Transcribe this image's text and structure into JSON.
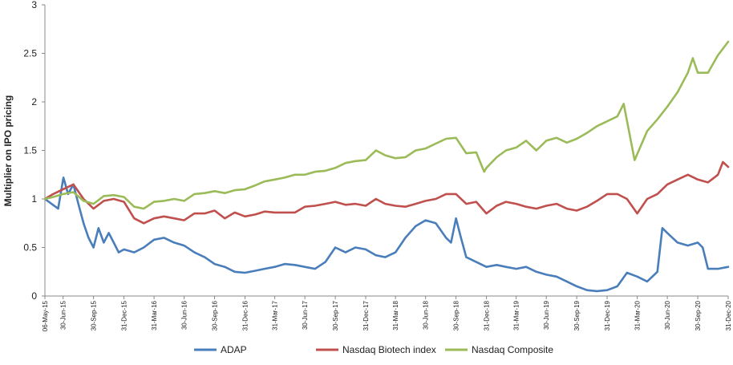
{
  "chart_data": {
    "type": "line",
    "title": "",
    "ylabel": "Multiplier on IPO pricing",
    "xlabel": "",
    "ylim": [
      0,
      3
    ],
    "yticks": [
      "0",
      "0.5",
      "1",
      "1.5",
      "2",
      "2.5",
      "3"
    ],
    "xtick_labels": [
      "06-May-15",
      "30-Jun-15",
      "30-Sep-15",
      "31-Dec-15",
      "31-Mar-16",
      "30-Jun-16",
      "30-Sep-16",
      "31-Dec-16",
      "31-Mar-17",
      "30-Jun-17",
      "30-Sep-17",
      "31-Dec-17",
      "31-Mar-18",
      "30-Jun-18",
      "30-Sep-18",
      "31-Dec-18",
      "31-Mar-19",
      "30-Jun-19",
      "30-Sep-19",
      "31-Dec-19",
      "31-Mar-20",
      "30-Jun-20",
      "30-Sep-20",
      "31-Dec-20"
    ],
    "grid": false,
    "legend_position": "bottom",
    "series": [
      {
        "name": "ADAP",
        "color": "#4a7ebb",
        "points": [
          [
            "06-May-15",
            1.0
          ],
          [
            "15-Jun-15",
            0.9
          ],
          [
            "01-Jul-15",
            1.22
          ],
          [
            "15-Jul-15",
            1.05
          ],
          [
            "31-Jul-15",
            1.15
          ],
          [
            "15-Aug-15",
            0.95
          ],
          [
            "31-Aug-15",
            0.75
          ],
          [
            "15-Sep-15",
            0.6
          ],
          [
            "30-Sep-15",
            0.5
          ],
          [
            "15-Oct-15",
            0.7
          ],
          [
            "31-Oct-15",
            0.55
          ],
          [
            "15-Nov-15",
            0.65
          ],
          [
            "30-Nov-15",
            0.55
          ],
          [
            "15-Dec-15",
            0.45
          ],
          [
            "31-Dec-15",
            0.48
          ],
          [
            "31-Jan-16",
            0.45
          ],
          [
            "29-Feb-16",
            0.5
          ],
          [
            "31-Mar-16",
            0.58
          ],
          [
            "30-Apr-16",
            0.6
          ],
          [
            "31-May-16",
            0.55
          ],
          [
            "30-Jun-16",
            0.52
          ],
          [
            "31-Jul-16",
            0.45
          ],
          [
            "31-Aug-16",
            0.4
          ],
          [
            "30-Sep-16",
            0.33
          ],
          [
            "31-Oct-16",
            0.3
          ],
          [
            "30-Nov-16",
            0.25
          ],
          [
            "31-Dec-16",
            0.24
          ],
          [
            "31-Jan-17",
            0.26
          ],
          [
            "28-Feb-17",
            0.28
          ],
          [
            "31-Mar-17",
            0.3
          ],
          [
            "30-Apr-17",
            0.33
          ],
          [
            "31-May-17",
            0.32
          ],
          [
            "30-Jun-17",
            0.3
          ],
          [
            "31-Jul-17",
            0.28
          ],
          [
            "31-Aug-17",
            0.35
          ],
          [
            "30-Sep-17",
            0.5
          ],
          [
            "31-Oct-17",
            0.45
          ],
          [
            "30-Nov-17",
            0.5
          ],
          [
            "31-Dec-17",
            0.48
          ],
          [
            "31-Jan-18",
            0.42
          ],
          [
            "28-Feb-18",
            0.4
          ],
          [
            "31-Mar-18",
            0.45
          ],
          [
            "30-Apr-18",
            0.6
          ],
          [
            "31-May-18",
            0.72
          ],
          [
            "30-Jun-18",
            0.78
          ],
          [
            "31-Jul-18",
            0.75
          ],
          [
            "31-Aug-18",
            0.6
          ],
          [
            "15-Sep-18",
            0.55
          ],
          [
            "30-Sep-18",
            0.8
          ],
          [
            "15-Oct-18",
            0.6
          ],
          [
            "31-Oct-18",
            0.4
          ],
          [
            "30-Nov-18",
            0.35
          ],
          [
            "31-Dec-18",
            0.3
          ],
          [
            "31-Jan-19",
            0.32
          ],
          [
            "28-Feb-19",
            0.3
          ],
          [
            "31-Mar-19",
            0.28
          ],
          [
            "30-Apr-19",
            0.3
          ],
          [
            "31-May-19",
            0.25
          ],
          [
            "30-Jun-19",
            0.22
          ],
          [
            "31-Jul-19",
            0.2
          ],
          [
            "31-Aug-19",
            0.15
          ],
          [
            "30-Sep-19",
            0.1
          ],
          [
            "31-Oct-19",
            0.06
          ],
          [
            "30-Nov-19",
            0.05
          ],
          [
            "31-Dec-19",
            0.06
          ],
          [
            "31-Jan-20",
            0.1
          ],
          [
            "29-Feb-20",
            0.24
          ],
          [
            "31-Mar-20",
            0.2
          ],
          [
            "30-Apr-20",
            0.15
          ],
          [
            "31-May-20",
            0.25
          ],
          [
            "15-Jun-20",
            0.7
          ],
          [
            "30-Jun-20",
            0.65
          ],
          [
            "31-Jul-20",
            0.55
          ],
          [
            "31-Aug-20",
            0.52
          ],
          [
            "30-Sep-20",
            0.55
          ],
          [
            "15-Oct-20",
            0.5
          ],
          [
            "31-Oct-20",
            0.28
          ],
          [
            "30-Nov-20",
            0.28
          ],
          [
            "31-Dec-20",
            0.3
          ]
        ]
      },
      {
        "name": "Nasdaq Biotech index",
        "color": "#c0504d",
        "points": [
          [
            "06-May-15",
            1.0
          ],
          [
            "31-May-15",
            1.05
          ],
          [
            "30-Jun-15",
            1.1
          ],
          [
            "31-Jul-15",
            1.15
          ],
          [
            "31-Aug-15",
            1.0
          ],
          [
            "30-Sep-15",
            0.9
          ],
          [
            "31-Oct-15",
            0.98
          ],
          [
            "30-Nov-15",
            1.0
          ],
          [
            "31-Dec-15",
            0.97
          ],
          [
            "31-Jan-16",
            0.8
          ],
          [
            "29-Feb-16",
            0.75
          ],
          [
            "31-Mar-16",
            0.8
          ],
          [
            "30-Apr-16",
            0.82
          ],
          [
            "31-May-16",
            0.8
          ],
          [
            "30-Jun-16",
            0.78
          ],
          [
            "31-Jul-16",
            0.85
          ],
          [
            "31-Aug-16",
            0.85
          ],
          [
            "30-Sep-16",
            0.88
          ],
          [
            "31-Oct-16",
            0.8
          ],
          [
            "30-Nov-16",
            0.86
          ],
          [
            "31-Dec-16",
            0.82
          ],
          [
            "31-Jan-17",
            0.84
          ],
          [
            "28-Feb-17",
            0.87
          ],
          [
            "31-Mar-17",
            0.86
          ],
          [
            "30-Apr-17",
            0.86
          ],
          [
            "31-May-17",
            0.86
          ],
          [
            "30-Jun-17",
            0.92
          ],
          [
            "31-Jul-17",
            0.93
          ],
          [
            "31-Aug-17",
            0.95
          ],
          [
            "30-Sep-17",
            0.97
          ],
          [
            "31-Oct-17",
            0.94
          ],
          [
            "30-Nov-17",
            0.95
          ],
          [
            "31-Dec-17",
            0.93
          ],
          [
            "31-Jan-18",
            1.0
          ],
          [
            "28-Feb-18",
            0.95
          ],
          [
            "31-Mar-18",
            0.93
          ],
          [
            "30-Apr-18",
            0.92
          ],
          [
            "31-May-18",
            0.95
          ],
          [
            "30-Jun-18",
            0.98
          ],
          [
            "31-Jul-18",
            1.0
          ],
          [
            "31-Aug-18",
            1.05
          ],
          [
            "30-Sep-18",
            1.05
          ],
          [
            "31-Oct-18",
            0.95
          ],
          [
            "30-Nov-18",
            0.97
          ],
          [
            "31-Dec-18",
            0.85
          ],
          [
            "31-Jan-19",
            0.93
          ],
          [
            "28-Feb-19",
            0.97
          ],
          [
            "31-Mar-19",
            0.95
          ],
          [
            "30-Apr-19",
            0.92
          ],
          [
            "31-May-19",
            0.9
          ],
          [
            "30-Jun-19",
            0.93
          ],
          [
            "31-Jul-19",
            0.95
          ],
          [
            "31-Aug-19",
            0.9
          ],
          [
            "30-Sep-19",
            0.88
          ],
          [
            "31-Oct-19",
            0.92
          ],
          [
            "30-Nov-19",
            0.98
          ],
          [
            "31-Dec-19",
            1.05
          ],
          [
            "31-Jan-20",
            1.05
          ],
          [
            "29-Feb-20",
            1.0
          ],
          [
            "31-Mar-20",
            0.85
          ],
          [
            "30-Apr-20",
            1.0
          ],
          [
            "31-May-20",
            1.05
          ],
          [
            "30-Jun-20",
            1.15
          ],
          [
            "31-Jul-20",
            1.2
          ],
          [
            "31-Aug-20",
            1.25
          ],
          [
            "30-Sep-20",
            1.2
          ],
          [
            "31-Oct-20",
            1.17
          ],
          [
            "30-Nov-20",
            1.25
          ],
          [
            "15-Dec-20",
            1.38
          ],
          [
            "31-Dec-20",
            1.33
          ]
        ]
      },
      {
        "name": "Nasdaq Composite",
        "color": "#9bbb59",
        "points": [
          [
            "06-May-15",
            1.0
          ],
          [
            "31-May-15",
            1.02
          ],
          [
            "30-Jun-15",
            1.05
          ],
          [
            "31-Jul-15",
            1.07
          ],
          [
            "31-Aug-15",
            0.98
          ],
          [
            "30-Sep-15",
            0.95
          ],
          [
            "31-Oct-15",
            1.03
          ],
          [
            "30-Nov-15",
            1.04
          ],
          [
            "31-Dec-15",
            1.02
          ],
          [
            "31-Jan-16",
            0.92
          ],
          [
            "29-Feb-16",
            0.9
          ],
          [
            "31-Mar-16",
            0.97
          ],
          [
            "30-Apr-16",
            0.98
          ],
          [
            "31-May-16",
            1.0
          ],
          [
            "30-Jun-16",
            0.98
          ],
          [
            "31-Jul-16",
            1.05
          ],
          [
            "31-Aug-16",
            1.06
          ],
          [
            "30-Sep-16",
            1.08
          ],
          [
            "31-Oct-16",
            1.06
          ],
          [
            "30-Nov-16",
            1.09
          ],
          [
            "31-Dec-16",
            1.1
          ],
          [
            "31-Jan-17",
            1.14
          ],
          [
            "28-Feb-17",
            1.18
          ],
          [
            "31-Mar-17",
            1.2
          ],
          [
            "30-Apr-17",
            1.22
          ],
          [
            "31-May-17",
            1.25
          ],
          [
            "30-Jun-17",
            1.25
          ],
          [
            "31-Jul-17",
            1.28
          ],
          [
            "31-Aug-17",
            1.29
          ],
          [
            "30-Sep-17",
            1.32
          ],
          [
            "31-Oct-17",
            1.37
          ],
          [
            "30-Nov-17",
            1.39
          ],
          [
            "31-Dec-17",
            1.4
          ],
          [
            "31-Jan-18",
            1.5
          ],
          [
            "28-Feb-18",
            1.45
          ],
          [
            "31-Mar-18",
            1.42
          ],
          [
            "30-Apr-18",
            1.43
          ],
          [
            "31-May-18",
            1.5
          ],
          [
            "30-Jun-18",
            1.52
          ],
          [
            "31-Jul-18",
            1.57
          ],
          [
            "31-Aug-18",
            1.62
          ],
          [
            "30-Sep-18",
            1.63
          ],
          [
            "31-Oct-18",
            1.47
          ],
          [
            "30-Nov-18",
            1.48
          ],
          [
            "24-Dec-18",
            1.28
          ],
          [
            "31-Dec-18",
            1.32
          ],
          [
            "31-Jan-19",
            1.43
          ],
          [
            "28-Feb-19",
            1.5
          ],
          [
            "31-Mar-19",
            1.53
          ],
          [
            "30-Apr-19",
            1.6
          ],
          [
            "31-May-19",
            1.5
          ],
          [
            "30-Jun-19",
            1.6
          ],
          [
            "31-Jul-19",
            1.63
          ],
          [
            "31-Aug-19",
            1.58
          ],
          [
            "30-Sep-19",
            1.62
          ],
          [
            "31-Oct-19",
            1.68
          ],
          [
            "30-Nov-19",
            1.75
          ],
          [
            "31-Dec-19",
            1.8
          ],
          [
            "31-Jan-20",
            1.85
          ],
          [
            "19-Feb-20",
            1.98
          ],
          [
            "23-Mar-20",
            1.4
          ],
          [
            "30-Apr-20",
            1.7
          ],
          [
            "31-May-20",
            1.82
          ],
          [
            "30-Jun-20",
            1.95
          ],
          [
            "31-Jul-20",
            2.1
          ],
          [
            "31-Aug-20",
            2.3
          ],
          [
            "15-Sep-20",
            2.45
          ],
          [
            "30-Sep-20",
            2.3
          ],
          [
            "31-Oct-20",
            2.3
          ],
          [
            "30-Nov-20",
            2.48
          ],
          [
            "31-Dec-20",
            2.62
          ]
        ]
      }
    ]
  }
}
